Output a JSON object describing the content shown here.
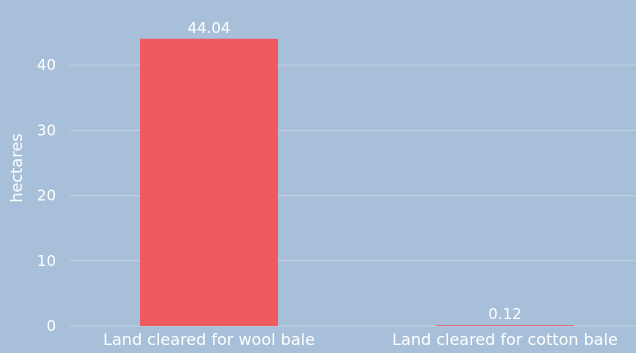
{
  "chart_data": {
    "type": "bar",
    "categories": [
      "Land cleared for wool bale",
      "Land cleared for cotton bale"
    ],
    "values": [
      44.04,
      0.12
    ],
    "data_labels": [
      "44.04",
      "0.12"
    ],
    "title": "",
    "xlabel": "",
    "ylabel": "hectares",
    "ylim": [
      0,
      46
    ],
    "yticks": [
      0,
      10,
      20,
      30,
      40
    ],
    "grid": true,
    "bar_color": "#ee5a5f",
    "background_color": "#a7bfd8"
  }
}
